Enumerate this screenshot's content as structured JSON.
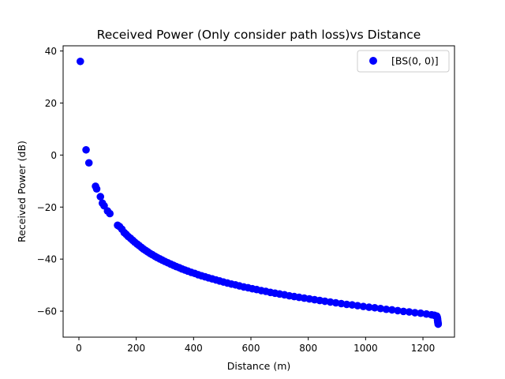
{
  "chart_data": {
    "type": "scatter",
    "title": "Received Power (Only consider path loss)vs Distance",
    "xlabel": "Distance (m)",
    "ylabel": "Received Power (dB)",
    "xlim": [
      -55,
      1310
    ],
    "ylim": [
      -70,
      42
    ],
    "xticks": [
      0,
      200,
      400,
      600,
      800,
      1000,
      1200
    ],
    "yticks": [
      40,
      20,
      0,
      -20,
      -40,
      -60
    ],
    "xtick_labels": [
      "0",
      "200",
      "400",
      "600",
      "800",
      "1000",
      "1200"
    ],
    "ytick_labels": [
      "40",
      "20",
      "0",
      "−20",
      "−40",
      "−60"
    ],
    "legend": {
      "position": "top-right",
      "entries": [
        "[BS(0, 0)]"
      ]
    },
    "grid": false,
    "series": [
      {
        "name": "[BS(0, 0)]",
        "color": "#0000ff",
        "points": [
          [
            5,
            36
          ],
          [
            25,
            2
          ],
          [
            35,
            -3
          ],
          [
            58,
            -12
          ],
          [
            62,
            -13
          ],
          [
            75,
            -16
          ],
          [
            82,
            -18.5
          ],
          [
            88,
            -19.5
          ],
          [
            100,
            -21.5
          ],
          [
            108,
            -22.5
          ],
          [
            135,
            -27
          ],
          [
            142,
            -27.5
          ],
          [
            150,
            -28.5
          ],
          [
            158,
            -29.8
          ],
          [
            165,
            -30.5
          ],
          [
            172,
            -31.3
          ],
          [
            180,
            -32
          ],
          [
            188,
            -32.8
          ],
          [
            195,
            -33.5
          ],
          [
            203,
            -34.2
          ],
          [
            210,
            -34.8
          ],
          [
            218,
            -35.5
          ],
          [
            225,
            -36.1
          ],
          [
            233,
            -36.7
          ],
          [
            240,
            -37.2
          ],
          [
            248,
            -37.8
          ],
          [
            256,
            -38.3
          ],
          [
            265,
            -38.9
          ],
          [
            273,
            -39.4
          ],
          [
            282,
            -39.9
          ],
          [
            291,
            -40.4
          ],
          [
            300,
            -40.9
          ],
          [
            310,
            -41.4
          ],
          [
            320,
            -41.9
          ],
          [
            330,
            -42.4
          ],
          [
            340,
            -42.9
          ],
          [
            350,
            -43.3
          ],
          [
            360,
            -43.8
          ],
          [
            370,
            -44.2
          ],
          [
            380,
            -44.6
          ],
          [
            392,
            -45.1
          ],
          [
            404,
            -45.5
          ],
          [
            416,
            -46
          ],
          [
            428,
            -46.4
          ],
          [
            440,
            -46.8
          ],
          [
            452,
            -47.2
          ],
          [
            465,
            -47.6
          ],
          [
            478,
            -48
          ],
          [
            491,
            -48.4
          ],
          [
            504,
            -48.8
          ],
          [
            518,
            -49.2
          ],
          [
            532,
            -49.6
          ],
          [
            546,
            -49.9
          ],
          [
            560,
            -50.3
          ],
          [
            575,
            -50.7
          ],
          [
            590,
            -51
          ],
          [
            605,
            -51.4
          ],
          [
            620,
            -51.7
          ],
          [
            636,
            -52.1
          ],
          [
            652,
            -52.4
          ],
          [
            668,
            -52.8
          ],
          [
            684,
            -53.1
          ],
          [
            700,
            -53.4
          ],
          [
            717,
            -53.7
          ],
          [
            734,
            -54.1
          ],
          [
            751,
            -54.4
          ],
          [
            768,
            -54.7
          ],
          [
            786,
            -55
          ],
          [
            804,
            -55.3
          ],
          [
            822,
            -55.6
          ],
          [
            840,
            -55.9
          ],
          [
            858,
            -56.2
          ],
          [
            877,
            -56.5
          ],
          [
            896,
            -56.8
          ],
          [
            915,
            -57.1
          ],
          [
            934,
            -57.4
          ],
          [
            953,
            -57.6
          ],
          [
            972,
            -57.9
          ],
          [
            992,
            -58.2
          ],
          [
            1012,
            -58.5
          ],
          [
            1032,
            -58.7
          ],
          [
            1052,
            -59
          ],
          [
            1072,
            -59.3
          ],
          [
            1092,
            -59.5
          ],
          [
            1112,
            -59.8
          ],
          [
            1132,
            -60.1
          ],
          [
            1152,
            -60.3
          ],
          [
            1172,
            -60.6
          ],
          [
            1192,
            -60.8
          ],
          [
            1212,
            -61.1
          ],
          [
            1230,
            -61.4
          ],
          [
            1240,
            -61.6
          ],
          [
            1248,
            -61.9
          ],
          [
            1249,
            -62.2
          ],
          [
            1250,
            -62.5
          ],
          [
            1251,
            -63
          ],
          [
            1251,
            -63.5
          ],
          [
            1252,
            -64
          ],
          [
            1252,
            -64.4
          ],
          [
            1253,
            -64.7
          ],
          [
            1253,
            -65
          ]
        ]
      }
    ]
  }
}
